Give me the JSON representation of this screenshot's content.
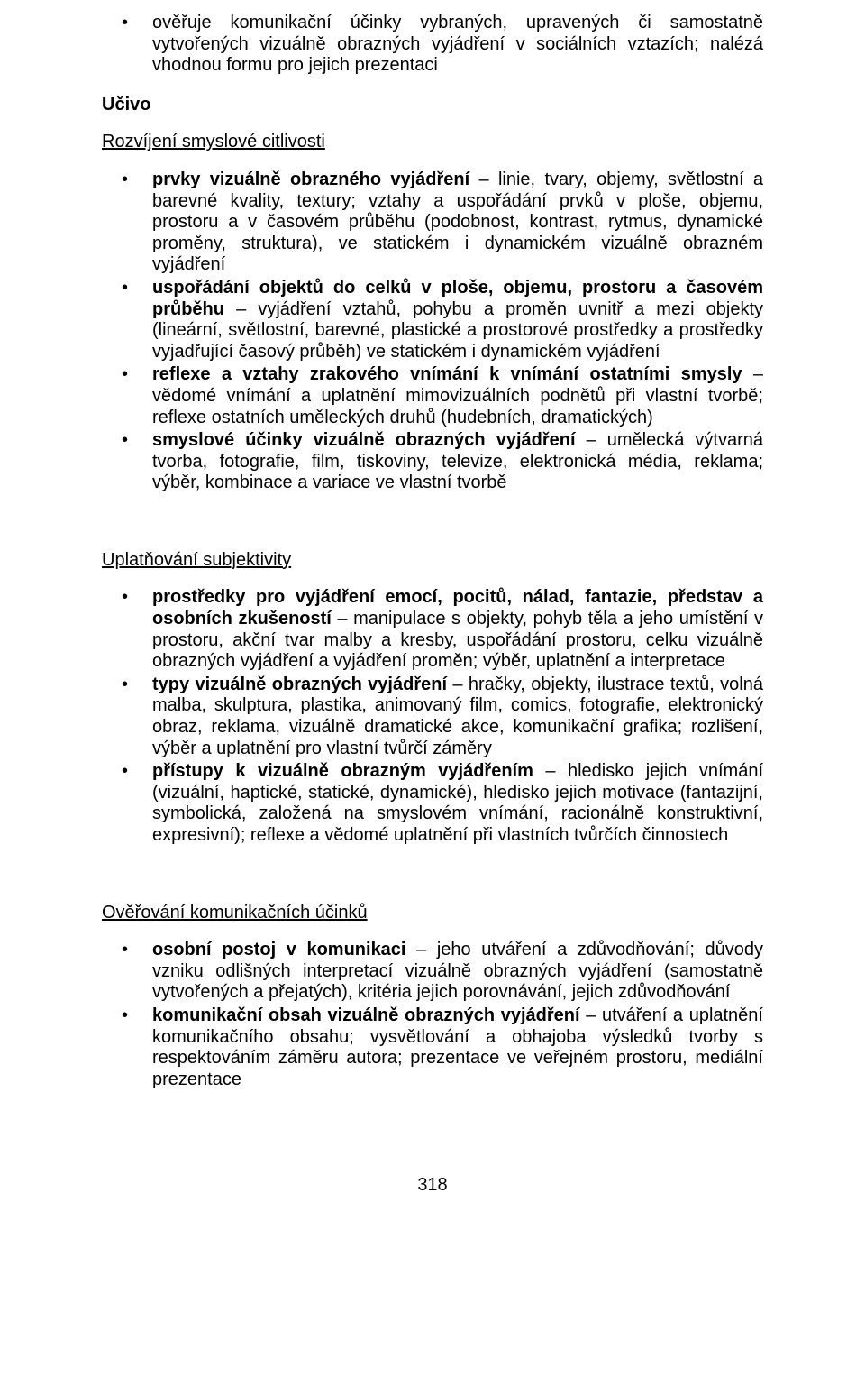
{
  "topList": {
    "items": [
      "ověřuje komunikační účinky vybraných, upravených či samostatně vytvořených vizuálně obrazných vyjádření v sociálních vztazích; nalézá vhodnou formu pro jejich prezentaci"
    ]
  },
  "ucivo": {
    "label": "Učivo"
  },
  "section1": {
    "heading": "Rozvíjení smyslové citlivosti",
    "items": [
      {
        "parts": [
          {
            "b": true,
            "t": "prvky vizuálně obrazného vyjádření"
          },
          {
            "b": false,
            "t": " – linie, tvary, objemy, světlostní a barevné kvality, textury; vztahy a uspořádání prvků v ploše, objemu, prostoru a v časovém průběhu (podobnost, kontrast, rytmus, dynamické proměny, struktura), ve statickém i dynamickém vizuálně obrazném vyjádření"
          }
        ]
      },
      {
        "parts": [
          {
            "b": true,
            "t": "uspořádání objektů do celků v ploše, objemu, prostoru a časovém průběhu"
          },
          {
            "b": false,
            "t": " – vyjádření vztahů, pohybu a proměn uvnitř a mezi objekty (lineární, světlostní, barevné, plastické a prostorové prostředky a prostředky vyjadřující časový průběh) ve statickém i dynamickém vyjádření"
          }
        ]
      },
      {
        "parts": [
          {
            "b": true,
            "t": "reflexe a vztahy zrakového vnímání k vnímání ostatními smysly"
          },
          {
            "b": false,
            "t": " – vědomé vnímání a uplatnění mimovizuálních podnětů při vlastní tvorbě; reflexe ostatních uměleckých druhů (hudebních, dramatických)"
          }
        ]
      },
      {
        "parts": [
          {
            "b": true,
            "t": "smyslové účinky vizuálně obrazných vyjádření"
          },
          {
            "b": false,
            "t": " – umělecká výtvarná tvorba, fotografie, film, tiskoviny, televize, elektronická média, reklama; výběr, kombinace a variace ve vlastní tvorbě"
          }
        ]
      }
    ]
  },
  "section2": {
    "heading": "Uplatňování subjektivity",
    "items": [
      {
        "parts": [
          {
            "b": true,
            "t": "prostředky pro vyjádření emocí, pocitů, nálad, fantazie, představ a osobních zkušeností"
          },
          {
            "b": false,
            "t": " – manipulace s objekty, pohyb těla a jeho umístění v prostoru, akční tvar malby a kresby, uspořádání prostoru, celku vizuálně obrazných vyjádření a vyjádření proměn; výběr, uplatnění a interpretace"
          }
        ]
      },
      {
        "parts": [
          {
            "b": true,
            "t": "typy vizuálně obrazných vyjádření"
          },
          {
            "b": false,
            "t": " – hračky, objekty, ilustrace textů, volná malba, skulptura, plastika, animovaný film, comics, fotografie, elektronický obraz, reklama, vizuálně dramatické akce, komunikační grafika; rozlišení, výběr a uplatnění pro vlastní tvůrčí záměry"
          }
        ]
      },
      {
        "parts": [
          {
            "b": true,
            "t": "přístupy k vizuálně obrazným vyjádřením"
          },
          {
            "b": false,
            "t": " – hledisko jejich vnímání (vizuální, haptické, statické, dynamické), hledisko jejich motivace (fantazijní, symbolická, založená na smyslovém vnímání, racionálně konstruktivní, expresivní); reflexe a vědomé uplatnění při vlastních tvůrčích činnostech"
          }
        ]
      }
    ]
  },
  "section3": {
    "heading": "Ověřování komunikačních účinků",
    "items": [
      {
        "parts": [
          {
            "b": true,
            "t": "osobní postoj v komunikaci"
          },
          {
            "b": false,
            "t": " – jeho utváření a zdůvodňování; důvody vzniku odlišných interpretací vizuálně obrazných vyjádření (samostatně vytvořených a přejatých), kritéria jejich porovnávání, jejich zdůvodňování"
          }
        ]
      },
      {
        "parts": [
          {
            "b": true,
            "t": "komunikační obsah vizuálně obrazných vyjádření"
          },
          {
            "b": false,
            "t": " – utváření a uplatnění komunikačního obsahu; vysvětlování a obhajoba výsledků tvorby s respektováním záměru autora; prezentace ve veřejném prostoru, mediální prezentace"
          }
        ]
      }
    ]
  },
  "pageNumber": "318"
}
